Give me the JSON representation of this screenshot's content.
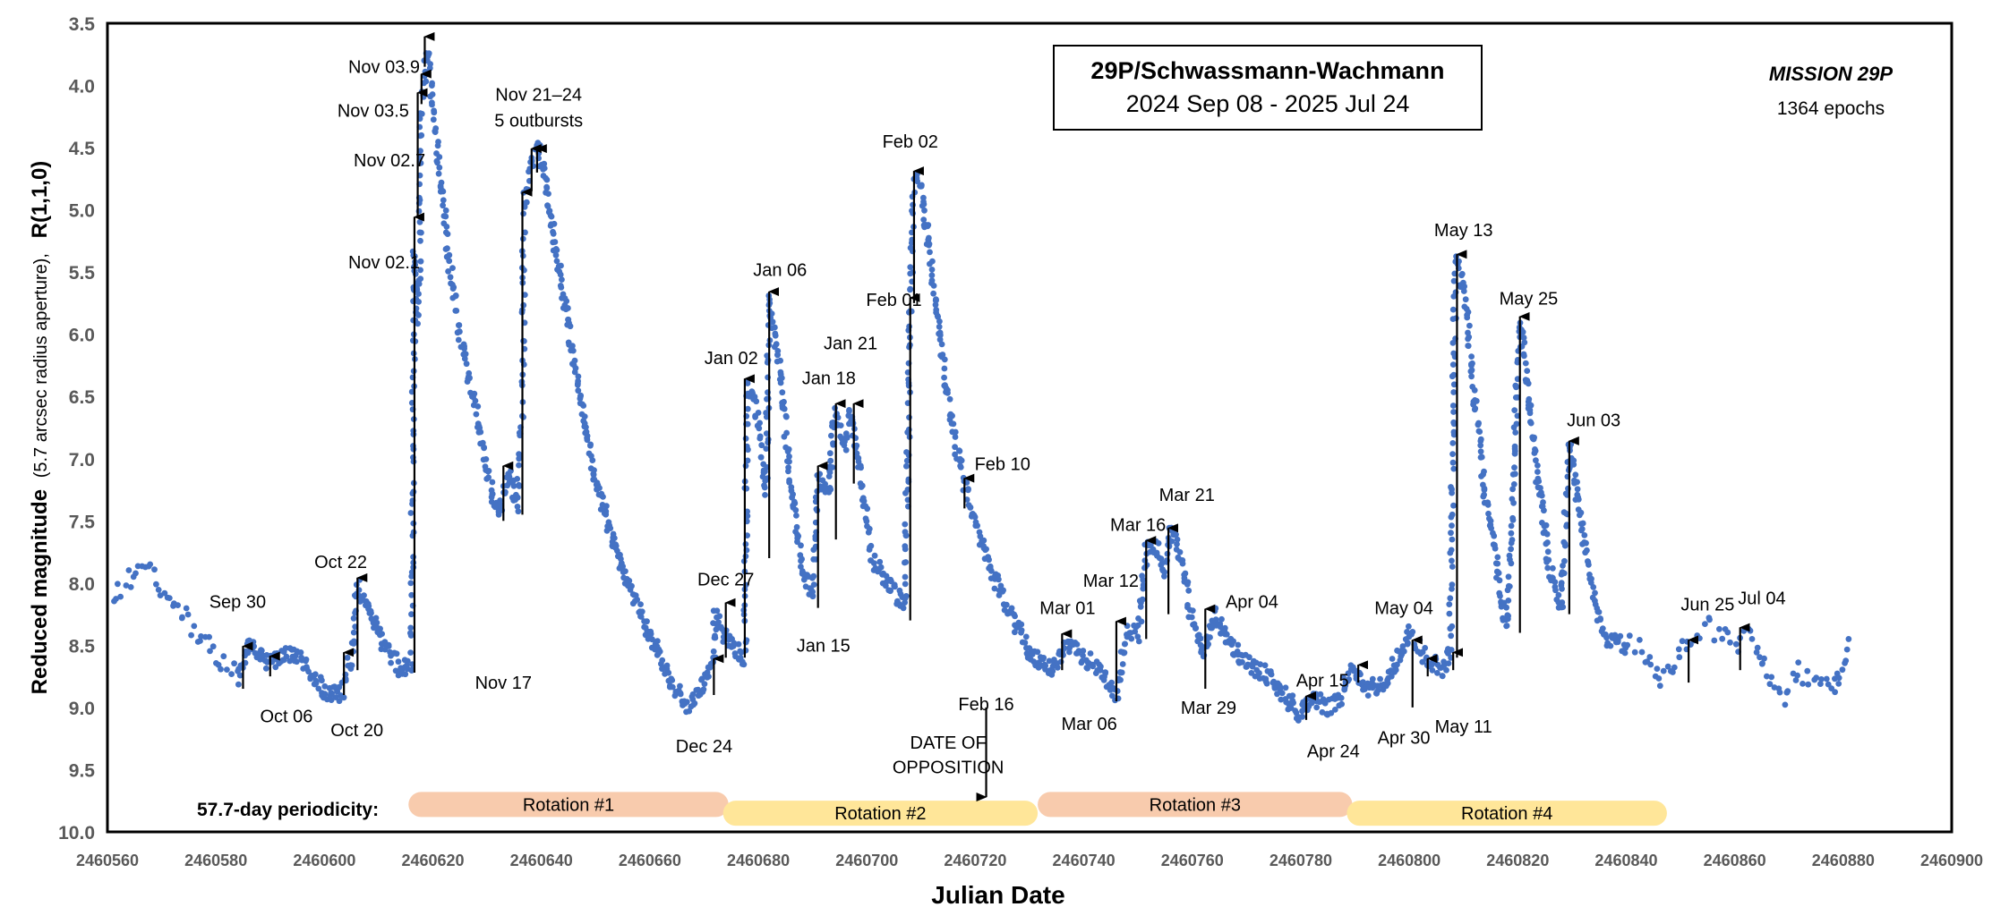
{
  "chart_data": {
    "type": "scatter",
    "title": "29P/Schwassmann-Wachmann",
    "subtitle": "2024 Sep 08 - 2025 Jul 24",
    "mission": "MISSION 29P",
    "epochs": "1364  epochs",
    "xlabel": "Julian Date",
    "ylabel_bold": "Reduced magnitude",
    "ylabel_note": "(5.7 arcsec radius aperture),",
    "ylabel_tail": "R(1,1,0)",
    "xlim": [
      2460560,
      2460900
    ],
    "ylim": [
      3.5,
      10.0
    ],
    "y_inverted": true,
    "xticks": [
      "2460560",
      "2460580",
      "2460600",
      "2460620",
      "2460640",
      "2460660",
      "2460680",
      "2460700",
      "2460720",
      "2460740",
      "2460760",
      "2460780",
      "2460800",
      "2460820",
      "2460840",
      "2460860",
      "2460880",
      "2460900"
    ],
    "yticks": [
      "3.5",
      "4.0",
      "4.5",
      "5.0",
      "5.5",
      "6.0",
      "6.5",
      "7.0",
      "7.5",
      "8.0",
      "8.5",
      "9.0",
      "9.5",
      "10.0"
    ],
    "point_color": "#4472C4",
    "anchors": [
      [
        2460561,
        8.1
      ],
      [
        2460567,
        7.85
      ],
      [
        2460575,
        8.3
      ],
      [
        2460580,
        8.6
      ],
      [
        2460584,
        8.75
      ],
      [
        2460586,
        8.5
      ],
      [
        2460590,
        8.65
      ],
      [
        2460594,
        8.55
      ],
      [
        2460598,
        8.75
      ],
      [
        2460600,
        8.88
      ],
      [
        2460603,
        8.9
      ],
      [
        2460605,
        8.6
      ],
      [
        2460606,
        8.0
      ],
      [
        2460608,
        8.2
      ],
      [
        2460611,
        8.5
      ],
      [
        2460614,
        8.7
      ],
      [
        2460616,
        8.65
      ],
      [
        2460616.6,
        5.3
      ],
      [
        2460617.0,
        5.9
      ],
      [
        2460617.5,
        5.5
      ],
      [
        2460617.8,
        4.2
      ],
      [
        2460618.5,
        3.9
      ],
      [
        2460619.0,
        3.7
      ],
      [
        2460620,
        4.1
      ],
      [
        2460621,
        4.6
      ],
      [
        2460623,
        5.4
      ],
      [
        2460625,
        6.0
      ],
      [
        2460628,
        6.6
      ],
      [
        2460630,
        7.1
      ],
      [
        2460632,
        7.45
      ],
      [
        2460634,
        7.1
      ],
      [
        2460635.5,
        7.4
      ],
      [
        2460636,
        6.9
      ],
      [
        2460636.5,
        6.6
      ],
      [
        2460636.8,
        4.95
      ],
      [
        2460637.5,
        4.75
      ],
      [
        2460638.5,
        4.55
      ],
      [
        2460639.5,
        4.5
      ],
      [
        2460640.5,
        4.7
      ],
      [
        2460643,
        5.4
      ],
      [
        2460646,
        6.2
      ],
      [
        2460650,
        7.2
      ],
      [
        2460655,
        7.9
      ],
      [
        2460660,
        8.4
      ],
      [
        2460664,
        8.8
      ],
      [
        2460667,
        9.0
      ],
      [
        2460670,
        8.8
      ],
      [
        2460671.8,
        8.6
      ],
      [
        2460672,
        8.2
      ],
      [
        2460673,
        8.35
      ],
      [
        2460675,
        8.5
      ],
      [
        2460677.5,
        8.6
      ],
      [
        2460678,
        6.4
      ],
      [
        2460680,
        6.7
      ],
      [
        2460681.5,
        7.3
      ],
      [
        2460682,
        5.7
      ],
      [
        2460684,
        6.3
      ],
      [
        2460686,
        7.2
      ],
      [
        2460688,
        7.9
      ],
      [
        2460690,
        8.1
      ],
      [
        2460691,
        7.15
      ],
      [
        2460693,
        7.3
      ],
      [
        2460694,
        6.6
      ],
      [
        2460696,
        6.9
      ],
      [
        2460697,
        6.6
      ],
      [
        2460699,
        7.2
      ],
      [
        2460701,
        7.8
      ],
      [
        2460704,
        8.0
      ],
      [
        2460707,
        8.2
      ],
      [
        2460708,
        5.8
      ],
      [
        2460708.8,
        4.7
      ],
      [
        2460710,
        4.8
      ],
      [
        2460712,
        5.5
      ],
      [
        2460714,
        6.2
      ],
      [
        2460716,
        6.8
      ],
      [
        2460718,
        7.2
      ],
      [
        2460720,
        7.5
      ],
      [
        2460723,
        7.9
      ],
      [
        2460726,
        8.2
      ],
      [
        2460730,
        8.55
      ],
      [
        2460734,
        8.7
      ],
      [
        2460737,
        8.5
      ],
      [
        2460740,
        8.6
      ],
      [
        2460743,
        8.7
      ],
      [
        2460746,
        8.9
      ],
      [
        2460748,
        8.4
      ],
      [
        2460750,
        8.4
      ],
      [
        2460751.5,
        7.75
      ],
      [
        2460753,
        7.7
      ],
      [
        2460755,
        7.9
      ],
      [
        2460756,
        7.55
      ],
      [
        2460758,
        7.8
      ],
      [
        2460760,
        8.3
      ],
      [
        2460762,
        8.6
      ],
      [
        2460764,
        8.25
      ],
      [
        2460767,
        8.5
      ],
      [
        2460770,
        8.65
      ],
      [
        2460774,
        8.75
      ],
      [
        2460777,
        8.9
      ],
      [
        2460780,
        9.05
      ],
      [
        2460782,
        8.9
      ],
      [
        2460785,
        9.0
      ],
      [
        2460787,
        8.95
      ],
      [
        2460789,
        8.7
      ],
      [
        2460792,
        8.85
      ],
      [
        2460795,
        8.8
      ],
      [
        2460798,
        8.6
      ],
      [
        2460800,
        8.4
      ],
      [
        2460803,
        8.6
      ],
      [
        2460806,
        8.7
      ],
      [
        2460807.5,
        8.55
      ],
      [
        2460808.5,
        5.4
      ],
      [
        2460810,
        5.6
      ],
      [
        2460812,
        6.5
      ],
      [
        2460814,
        7.3
      ],
      [
        2460816,
        7.8
      ],
      [
        2460818,
        8.4
      ],
      [
        2460820,
        6.3
      ],
      [
        2460820.6,
        5.9
      ],
      [
        2460822,
        6.5
      ],
      [
        2460824,
        7.3
      ],
      [
        2460826,
        7.9
      ],
      [
        2460828,
        8.2
      ],
      [
        2460829.5,
        6.9
      ],
      [
        2460831,
        7.3
      ],
      [
        2460833,
        7.9
      ],
      [
        2460836,
        8.45
      ],
      [
        2460840,
        8.5
      ],
      [
        2460843,
        8.55
      ],
      [
        2460846,
        8.8
      ],
      [
        2460849,
        8.6
      ],
      [
        2460852,
        8.45
      ],
      [
        2460855,
        8.35
      ],
      [
        2460860,
        8.5
      ],
      [
        2460863,
        8.4
      ],
      [
        2460866,
        8.7
      ],
      [
        2460869,
        8.9
      ],
      [
        2460872,
        8.7
      ],
      [
        2460875,
        8.8
      ],
      [
        2460878,
        8.9
      ],
      [
        2460881,
        8.45
      ]
    ],
    "outburst_arrows": [
      {
        "x": 2460585,
        "y1": 8.85,
        "y2": 8.5
      },
      {
        "x": 2460590,
        "y1": 8.75,
        "y2": 8.58
      },
      {
        "x": 2460603.6,
        "y1": 8.9,
        "y2": 8.55
      },
      {
        "x": 2460606.1,
        "y1": 8.7,
        "y2": 7.95
      },
      {
        "x": 2460616.6,
        "y1": 8.72,
        "y2": 5.05
      },
      {
        "x": 2460617.2,
        "y1": 5.05,
        "y2": 4.05
      },
      {
        "x": 2460617.9,
        "y1": 4.15,
        "y2": 3.9
      },
      {
        "x": 2460618.5,
        "y1": 3.85,
        "y2": 3.6
      },
      {
        "x": 2460633,
        "y1": 7.5,
        "y2": 7.05
      },
      {
        "x": 2460636.5,
        "y1": 7.45,
        "y2": 4.85
      },
      {
        "x": 2460638.2,
        "y1": 4.85,
        "y2": 4.5
      },
      {
        "x": 2460639.2,
        "y1": 4.7,
        "y2": 4.5
      },
      {
        "x": 2460671.8,
        "y1": 8.9,
        "y2": 8.6
      },
      {
        "x": 2460674,
        "y1": 8.6,
        "y2": 8.15
      },
      {
        "x": 2460677.5,
        "y1": 8.6,
        "y2": 6.35
      },
      {
        "x": 2460682,
        "y1": 7.8,
        "y2": 5.65
      },
      {
        "x": 2460691,
        "y1": 8.2,
        "y2": 7.05
      },
      {
        "x": 2460694.3,
        "y1": 7.65,
        "y2": 6.55
      },
      {
        "x": 2460697.6,
        "y1": 7.2,
        "y2": 6.55
      },
      {
        "x": 2460708,
        "y1": 8.3,
        "y2": 5.7
      },
      {
        "x": 2460708.7,
        "y1": 5.75,
        "y2": 4.68
      },
      {
        "x": 2460718,
        "y1": 7.4,
        "y2": 7.15
      },
      {
        "x": 2460736,
        "y1": 8.7,
        "y2": 8.4
      },
      {
        "x": 2460746,
        "y1": 8.95,
        "y2": 8.3
      },
      {
        "x": 2460751.5,
        "y1": 8.45,
        "y2": 7.65
      },
      {
        "x": 2460755.6,
        "y1": 8.25,
        "y2": 7.55
      },
      {
        "x": 2460762.4,
        "y1": 8.85,
        "y2": 8.2
      },
      {
        "x": 2460781,
        "y1": 9.1,
        "y2": 8.9
      },
      {
        "x": 2460790.6,
        "y1": 8.8,
        "y2": 8.65
      },
      {
        "x": 2460800.6,
        "y1": 9.0,
        "y2": 8.45
      },
      {
        "x": 2460803.4,
        "y1": 8.75,
        "y2": 8.6
      },
      {
        "x": 2460808.1,
        "y1": 8.7,
        "y2": 8.55
      },
      {
        "x": 2460808.8,
        "y1": 8.6,
        "y2": 5.35
      },
      {
        "x": 2460820.4,
        "y1": 8.4,
        "y2": 5.85
      },
      {
        "x": 2460829.5,
        "y1": 8.25,
        "y2": 6.85
      },
      {
        "x": 2460851.5,
        "y1": 8.8,
        "y2": 8.45
      },
      {
        "x": 2460861,
        "y1": 8.7,
        "y2": 8.35
      }
    ],
    "annotations": [
      {
        "text": "Nov 03.9",
        "x": 2460611,
        "y": 3.85
      },
      {
        "text": "Nov 03.5",
        "x": 2460609,
        "y": 4.2
      },
      {
        "text": "Nov 02.7",
        "x": 2460612,
        "y": 4.6
      },
      {
        "text": "Nov 02.1",
        "x": 2460611,
        "y": 5.42
      },
      {
        "text": "Nov 21–24",
        "x": 2460639.5,
        "y": 4.07
      },
      {
        "text": "5 outbursts",
        "x": 2460639.5,
        "y": 4.28
      },
      {
        "text": "Nov 17",
        "x": 2460633,
        "y": 8.8
      },
      {
        "text": "Sep 30",
        "x": 2460584,
        "y": 8.15
      },
      {
        "text": "Oct 06",
        "x": 2460593,
        "y": 9.07
      },
      {
        "text": "Oct 22",
        "x": 2460603,
        "y": 7.83
      },
      {
        "text": "Oct 20",
        "x": 2460606,
        "y": 9.18
      },
      {
        "text": "Jan 06",
        "x": 2460684,
        "y": 5.48
      },
      {
        "text": "Jan 02",
        "x": 2460675,
        "y": 6.19
      },
      {
        "text": "Jan 18",
        "x": 2460693,
        "y": 6.35
      },
      {
        "text": "Jan 21",
        "x": 2460697,
        "y": 6.07
      },
      {
        "text": "Jan 15",
        "x": 2460692,
        "y": 8.5
      },
      {
        "text": "Feb 02",
        "x": 2460708,
        "y": 4.45
      },
      {
        "text": "Feb 01",
        "x": 2460705,
        "y": 5.72
      },
      {
        "text": "Feb 10",
        "x": 2460725,
        "y": 7.04
      },
      {
        "text": "Dec 27",
        "x": 2460674,
        "y": 7.97
      },
      {
        "text": "Dec 24",
        "x": 2460670,
        "y": 9.31
      },
      {
        "text": "Feb 16",
        "x": 2460722,
        "y": 8.97
      },
      {
        "text": "DATE OF",
        "x": 2460715,
        "y": 9.28
      },
      {
        "text": "OPPOSITION",
        "x": 2460715,
        "y": 9.48
      },
      {
        "text": "Mar 01",
        "x": 2460737,
        "y": 8.2
      },
      {
        "text": "Mar 12",
        "x": 2460745,
        "y": 7.98
      },
      {
        "text": "Mar 16",
        "x": 2460750,
        "y": 7.53
      },
      {
        "text": "Mar 21",
        "x": 2460759,
        "y": 7.29
      },
      {
        "text": "Mar 06",
        "x": 2460741,
        "y": 9.13
      },
      {
        "text": "Mar 29",
        "x": 2460763,
        "y": 9.0
      },
      {
        "text": "Apr 04",
        "x": 2460771,
        "y": 8.15
      },
      {
        "text": "Apr 15",
        "x": 2460784,
        "y": 8.78
      },
      {
        "text": "Apr 24",
        "x": 2460786,
        "y": 9.35
      },
      {
        "text": "May 04",
        "x": 2460799,
        "y": 8.2
      },
      {
        "text": "Apr 30",
        "x": 2460799,
        "y": 9.24
      },
      {
        "text": "May 11",
        "x": 2460810,
        "y": 9.15
      },
      {
        "text": "May 13",
        "x": 2460810,
        "y": 5.16
      },
      {
        "text": "May 25",
        "x": 2460822,
        "y": 5.71
      },
      {
        "text": "Jun 03",
        "x": 2460834,
        "y": 6.69
      },
      {
        "text": "Jun 25",
        "x": 2460855,
        "y": 8.17
      },
      {
        "text": "Jul 04",
        "x": 2460865,
        "y": 8.12
      }
    ],
    "periodicity_label": "57.7-day periodicity:",
    "rotations": [
      {
        "label": "Rotation #1",
        "x0": 2460615.5,
        "x1": 2460674.5,
        "y": 9.78,
        "color": "#F8CBAD"
      },
      {
        "label": "Rotation #2",
        "x0": 2460673.5,
        "x1": 2460731.5,
        "y": 9.85,
        "color": "#FFE699"
      },
      {
        "label": "Rotation #3",
        "x0": 2460731.5,
        "x1": 2460789.5,
        "y": 9.78,
        "color": "#F8CBAD"
      },
      {
        "label": "Rotation #4",
        "x0": 2460788.5,
        "x1": 2460847.5,
        "y": 9.85,
        "color": "#FFE699"
      }
    ],
    "opposition_arrow": {
      "x": 2460722,
      "y1": 9.0,
      "y2": 9.72
    }
  }
}
